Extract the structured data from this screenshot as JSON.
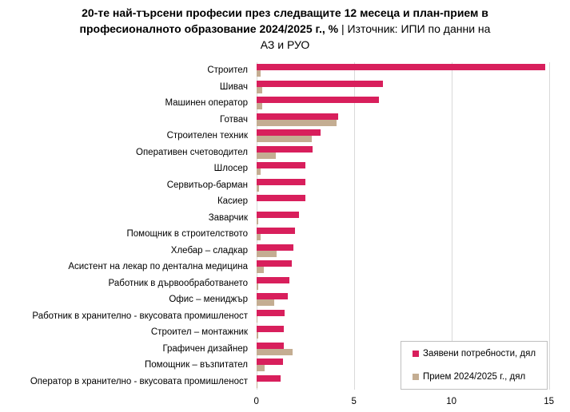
{
  "title": {
    "line1_bold": "20-те най-търсени професии през следващите  12 месеца и план-прием в",
    "line2_bold": "професионалното образование 2024/2025  г., %",
    "line2_normal": " | Източник: ИПИ по данни на",
    "line3_normal": "АЗ и РУО"
  },
  "legend": {
    "series1": "Заявени потребности, дял",
    "series2": "Прием 2024/2025  г., дял"
  },
  "colors": {
    "series1": "#D81F5C",
    "series2": "#C4AD92",
    "grid": "#D9D9D9"
  },
  "x_ticks": [
    "0",
    "5",
    "10",
    "15"
  ],
  "chart_data": {
    "type": "bar",
    "orientation": "horizontal",
    "title": "20-те най-търсени професии през следващите 12 месеца и план-прием в професионалното образование 2024/2025 г., % | Източник: ИПИ по данни на АЗ и РУО",
    "xlabel": "",
    "ylabel": "",
    "xlim": [
      0,
      15
    ],
    "x_ticks": [
      0,
      5,
      10,
      15
    ],
    "grid": true,
    "legend_position": "bottom-right inside",
    "categories": [
      "Строител",
      "Шивач",
      "Машинен оператор",
      "Готвач",
      "Строителен техник",
      "Оперативен счетоводител",
      "Шлосер",
      "Сервитьор-барман",
      "Касиер",
      "Заварчик",
      "Помощник в строителството",
      "Хлебар – сладкар",
      "Асистент на лекар по дентална медицина",
      "Работник в дървообработването",
      "Офис – мениджър",
      "Работник в хранително - вкусовата промишленост",
      "Строител – монтажник",
      "Графичен дизайнер",
      "Помощник – възпитател",
      "Оператор в хранително - вкусовата промишленост"
    ],
    "series": [
      {
        "name": "Заявени потребности, дял",
        "color": "#D81F5C",
        "values": [
          14.8,
          6.5,
          6.3,
          4.2,
          3.3,
          2.9,
          2.5,
          2.5,
          2.5,
          2.2,
          2.0,
          1.9,
          1.8,
          1.7,
          1.6,
          1.45,
          1.4,
          1.4,
          1.35,
          1.25
        ]
      },
      {
        "name": "Прием 2024/2025  г., дял",
        "color": "#C4AD92",
        "values": [
          0.2,
          0.3,
          0.3,
          4.1,
          2.85,
          1.0,
          0.2,
          0.12,
          0.0,
          0.08,
          0.2,
          1.05,
          0.4,
          0.08,
          0.9,
          0.05,
          0.08,
          1.85,
          0.42,
          0.04
        ]
      }
    ]
  }
}
